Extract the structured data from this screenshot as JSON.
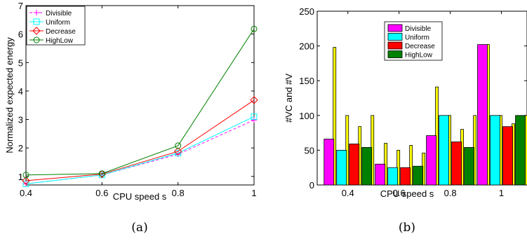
{
  "chart_data": [
    {
      "type": "line",
      "caption": "(a)",
      "xlabel": "CPU speed s",
      "ylabel": "Normalized expected energy",
      "x": [
        0.4,
        0.6,
        0.8,
        1
      ],
      "xticks": [
        "0.4",
        "0.6",
        "0.8",
        "1"
      ],
      "xlim": [
        0.4,
        1
      ],
      "ylim": [
        0.7,
        7
      ],
      "yticks": [
        "1",
        "2",
        "3",
        "4",
        "5",
        "6",
        "7"
      ],
      "grid": false,
      "legend_position": "top-left",
      "series": [
        {
          "name": "Divisible",
          "color": "#ff00ff",
          "dash": true,
          "marker": "plus",
          "values": [
            0.74,
            1.05,
            1.78,
            2.98
          ]
        },
        {
          "name": "Uniform",
          "color": "#00ffff",
          "dash": false,
          "marker": "square",
          "values": [
            0.74,
            1.05,
            1.82,
            3.1
          ]
        },
        {
          "name": "Decrease",
          "color": "#ff0000",
          "dash": false,
          "marker": "diamond",
          "values": [
            0.85,
            1.08,
            1.88,
            3.68
          ]
        },
        {
          "name": "HighLow",
          "color": "#008000",
          "dash": false,
          "marker": "circle",
          "values": [
            1.05,
            1.1,
            2.08,
            6.18
          ]
        }
      ]
    },
    {
      "type": "bar",
      "caption": "(b)",
      "xlabel": "CPU speed s",
      "ylabel": "#VC and #V",
      "categories": [
        "0.4",
        "0.6",
        "0.8",
        "1"
      ],
      "ylim": [
        0,
        250
      ],
      "yticks": [
        "0",
        "50",
        "100",
        "150",
        "200",
        "250"
      ],
      "grid": false,
      "legend_position": "top-center",
      "series": [
        {
          "name": "Divisible",
          "color": "#ff00ff",
          "values": [
            66,
            30,
            71,
            202
          ],
          "secondary": [
            198,
            60,
            141,
            202
          ]
        },
        {
          "name": "Uniform",
          "color": "#00ffff",
          "values": [
            50,
            25,
            100,
            100
          ],
          "secondary": [
            100,
            50,
            100,
            100
          ]
        },
        {
          "name": "Decrease",
          "color": "#ff0000",
          "values": [
            59,
            25,
            62,
            84
          ],
          "secondary": [
            84,
            57,
            80,
            88
          ]
        },
        {
          "name": "HighLow",
          "color": "#008000",
          "values": [
            54,
            27,
            54,
            100
          ],
          "secondary": [
            100,
            46,
            100,
            100
          ]
        }
      ],
      "secondary_color": "#ffff00"
    }
  ]
}
